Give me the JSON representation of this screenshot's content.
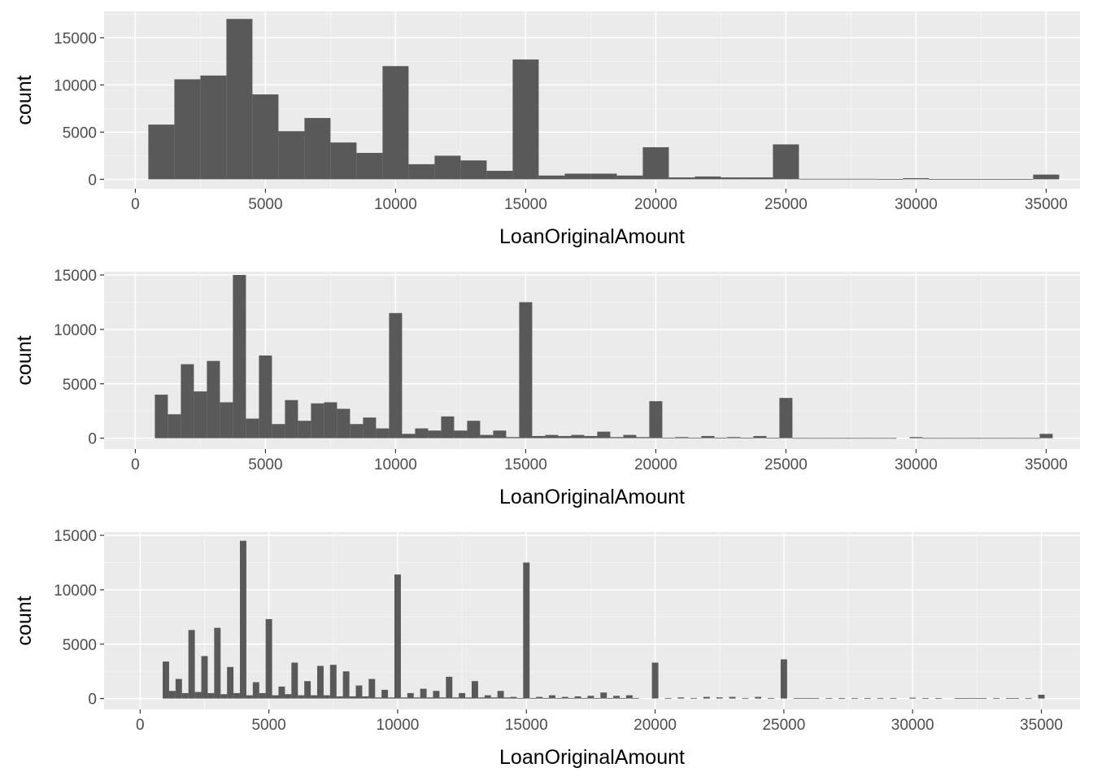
{
  "chart_data": [
    {
      "type": "bar",
      "title": "",
      "xlabel": "LoanOriginalAmount",
      "ylabel": "count",
      "xlim": [
        -1200,
        36300
      ],
      "ylim": [
        -1000,
        17800
      ],
      "x_ticks": [
        0,
        5000,
        10000,
        15000,
        20000,
        25000,
        30000,
        35000
      ],
      "y_ticks": [
        0,
        5000,
        10000,
        15000
      ],
      "bin_width": 1000,
      "x": [
        1000,
        2000,
        3000,
        4000,
        5000,
        6000,
        7000,
        8000,
        9000,
        10000,
        11000,
        12000,
        13000,
        14000,
        15000,
        16000,
        17000,
        18000,
        19000,
        20000,
        21000,
        22000,
        23000,
        24000,
        25000,
        26000,
        27000,
        28000,
        29000,
        30000,
        31000,
        32000,
        33000,
        34000,
        35000
      ],
      "values": [
        5800,
        10600,
        11000,
        17000,
        9000,
        5100,
        6500,
        3900,
        2800,
        12000,
        1600,
        2500,
        2000,
        900,
        12700,
        400,
        600,
        600,
        400,
        3400,
        200,
        300,
        200,
        200,
        3700,
        50,
        50,
        50,
        30,
        120,
        30,
        30,
        30,
        30,
        500
      ]
    },
    {
      "type": "bar",
      "title": "",
      "xlabel": "LoanOriginalAmount",
      "ylabel": "count",
      "xlim": [
        -1200,
        36300
      ],
      "ylim": [
        -1000,
        15300
      ],
      "x_ticks": [
        0,
        5000,
        10000,
        15000,
        20000,
        25000,
        30000,
        35000
      ],
      "y_ticks": [
        0,
        5000,
        10000,
        15000
      ],
      "bin_width": 500,
      "x": [
        1000,
        1500,
        2000,
        2500,
        3000,
        3500,
        4000,
        4500,
        5000,
        5500,
        6000,
        6500,
        7000,
        7500,
        8000,
        8500,
        9000,
        9500,
        10000,
        10500,
        11000,
        11500,
        12000,
        12500,
        13000,
        13500,
        14000,
        14500,
        15000,
        15500,
        16000,
        16500,
        17000,
        17500,
        18000,
        18500,
        19000,
        19500,
        20000,
        20500,
        21000,
        21500,
        22000,
        22500,
        23000,
        23500,
        24000,
        24500,
        25000,
        25500,
        26000,
        26500,
        27000,
        27500,
        28000,
        28500,
        29000,
        29500,
        30000,
        30500,
        31000,
        31500,
        32000,
        32500,
        33000,
        33500,
        34000,
        34500,
        35000
      ],
      "values": [
        4000,
        2200,
        6800,
        4300,
        7100,
        3300,
        15000,
        1800,
        7600,
        1300,
        3500,
        1600,
        3200,
        3300,
        2700,
        1300,
        1900,
        900,
        11500,
        400,
        900,
        700,
        2000,
        700,
        1600,
        300,
        700,
        100,
        12500,
        200,
        300,
        200,
        300,
        200,
        600,
        100,
        300,
        100,
        3400,
        50,
        100,
        50,
        200,
        50,
        100,
        30,
        200,
        30,
        3700,
        20,
        20,
        20,
        20,
        20,
        20,
        20,
        20,
        0,
        100,
        20,
        20,
        20,
        20,
        20,
        20,
        20,
        20,
        20,
        400
      ]
    },
    {
      "type": "bar",
      "title": "",
      "xlabel": "LoanOriginalAmount",
      "ylabel": "count",
      "xlim": [
        -1400,
        36500
      ],
      "ylim": [
        -1000,
        15300
      ],
      "x_ticks": [
        0,
        5000,
        10000,
        15000,
        20000,
        25000,
        30000,
        35000
      ],
      "y_ticks": [
        0,
        5000,
        10000,
        15000
      ],
      "bin_width": 250,
      "x": [
        1000,
        1250,
        1500,
        1750,
        2000,
        2250,
        2500,
        2750,
        3000,
        3250,
        3500,
        3750,
        4000,
        4250,
        4500,
        4750,
        5000,
        5250,
        5500,
        5750,
        6000,
        6250,
        6500,
        6750,
        7000,
        7250,
        7500,
        7750,
        8000,
        8250,
        8500,
        8750,
        9000,
        9250,
        9500,
        9750,
        10000,
        10250,
        10500,
        10750,
        11000,
        11250,
        11500,
        11750,
        12000,
        12250,
        12500,
        12750,
        13000,
        13250,
        13500,
        13750,
        14000,
        14250,
        14500,
        14750,
        15000,
        15250,
        15500,
        15750,
        16000,
        16250,
        16500,
        16750,
        17000,
        17250,
        17500,
        17750,
        18000,
        18250,
        18500,
        18750,
        19000,
        19250,
        19500,
        19750,
        20000,
        20250,
        20500,
        20750,
        21000,
        21250,
        21500,
        21750,
        22000,
        22250,
        22500,
        22750,
        23000,
        23250,
        23500,
        23750,
        24000,
        24250,
        24500,
        24750,
        25000,
        25250,
        25500,
        25750,
        26000,
        26250,
        26500,
        26750,
        27000,
        27250,
        27500,
        27750,
        28000,
        28250,
        28500,
        28750,
        29000,
        29250,
        29500,
        29750,
        30000,
        30250,
        30500,
        30750,
        31000,
        31250,
        31500,
        31750,
        32000,
        32250,
        32500,
        32750,
        33000,
        33250,
        33500,
        33750,
        34000,
        34250,
        34500,
        34750,
        35000
      ],
      "values": [
        3400,
        700,
        1800,
        500,
        6300,
        600,
        3900,
        500,
        6500,
        400,
        2900,
        500,
        14500,
        300,
        1500,
        500,
        7300,
        300,
        1100,
        400,
        3300,
        300,
        1600,
        300,
        3000,
        300,
        3100,
        200,
        2500,
        200,
        1200,
        200,
        1800,
        100,
        800,
        100,
        11400,
        100,
        500,
        100,
        900,
        100,
        700,
        100,
        2000,
        100,
        500,
        100,
        1600,
        100,
        300,
        100,
        700,
        100,
        150,
        50,
        12500,
        50,
        150,
        50,
        300,
        50,
        150,
        50,
        200,
        50,
        250,
        50,
        550,
        50,
        250,
        50,
        300,
        50,
        0,
        0,
        3300,
        0,
        50,
        0,
        100,
        0,
        50,
        0,
        150,
        0,
        100,
        0,
        150,
        0,
        50,
        0,
        150,
        0,
        50,
        0,
        3600,
        0,
        30,
        30,
        30,
        30,
        0,
        30,
        0,
        30,
        0,
        30,
        0,
        30,
        0,
        30,
        0,
        30,
        0,
        0,
        80,
        0,
        30,
        0,
        30,
        0,
        0,
        30,
        30,
        30,
        30,
        30,
        0,
        30,
        0,
        30,
        30,
        0,
        30,
        0,
        350
      ]
    }
  ]
}
